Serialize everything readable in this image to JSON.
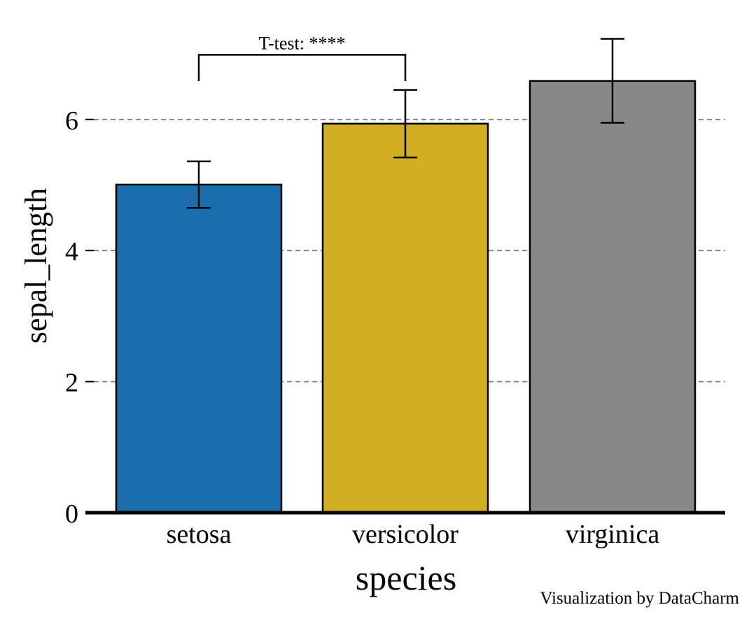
{
  "chart_data": {
    "type": "bar",
    "categories": [
      "setosa",
      "versicolor",
      "virginica"
    ],
    "values": [
      5.006,
      5.936,
      6.588
    ],
    "error_bars": {
      "lower": [
        4.65,
        5.42,
        5.95
      ],
      "upper": [
        5.36,
        6.45,
        7.23
      ]
    },
    "colors": [
      "#1a6eab",
      "#d2af20",
      "#878787"
    ],
    "xlabel": "species",
    "ylabel": "sepal_length",
    "yticks": [
      0,
      2,
      4,
      6
    ],
    "ylim": [
      0,
      7.5
    ],
    "grid": "horizontal dashed",
    "annotation": {
      "text": "T-test: ****",
      "from": "setosa",
      "to": "versicolor",
      "bracket_y": 7.05,
      "leg_y": 6.8
    }
  },
  "credit": "Visualization by DataCharm"
}
